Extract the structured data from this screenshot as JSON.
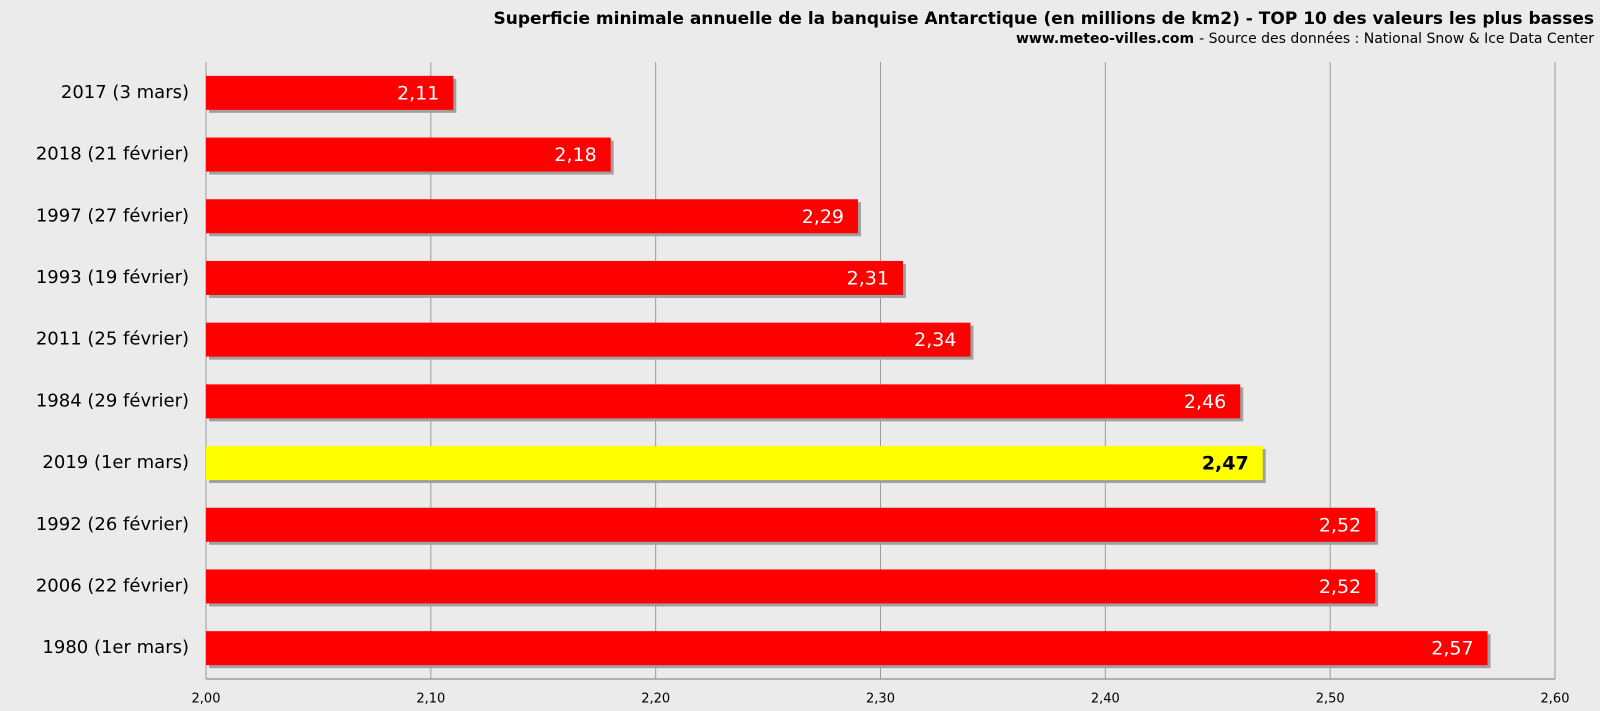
{
  "chart_data": {
    "type": "bar",
    "orientation": "horizontal",
    "title": "Superficie minimale annuelle de la banquise Antarctique (en millions de km2) - TOP 10 des valeurs les plus basses",
    "subtitle_site": "www.meteo-villes.com",
    "subtitle_source": "- Source des données : National Snow & Ice Data Center",
    "categories": [
      "2017 (3 mars)",
      "2018 (21 février)",
      "1997 (27 février)",
      "1993 (19 février)",
      "2011 (25 février)",
      "1984 (29 février)",
      "2019 (1er mars)",
      "1992 (26 février)",
      "2006 (22 février)",
      "1980 (1er mars)"
    ],
    "values": [
      2.11,
      2.18,
      2.29,
      2.31,
      2.34,
      2.46,
      2.47,
      2.52,
      2.52,
      2.57
    ],
    "value_labels": [
      "2,11",
      "2,18",
      "2,29",
      "2,31",
      "2,34",
      "2,46",
      "2,47",
      "2,52",
      "2,52",
      "2,57"
    ],
    "colors": [
      "#ff0000",
      "#ff0000",
      "#ff0000",
      "#ff0000",
      "#ff0000",
      "#ff0000",
      "#ffff00",
      "#ff0000",
      "#ff0000",
      "#ff0000"
    ],
    "xlim": [
      2.0,
      2.6
    ],
    "xticks": [
      {
        "value": 2.0,
        "label": "2,00"
      },
      {
        "value": 2.1,
        "label": "2,10"
      },
      {
        "value": 2.2,
        "label": "2,20"
      },
      {
        "value": 2.3,
        "label": "2,30"
      },
      {
        "value": 2.4,
        "label": "2,40"
      },
      {
        "value": 2.5,
        "label": "2,50"
      },
      {
        "value": 2.6,
        "label": "2,60"
      }
    ],
    "grid": true
  }
}
